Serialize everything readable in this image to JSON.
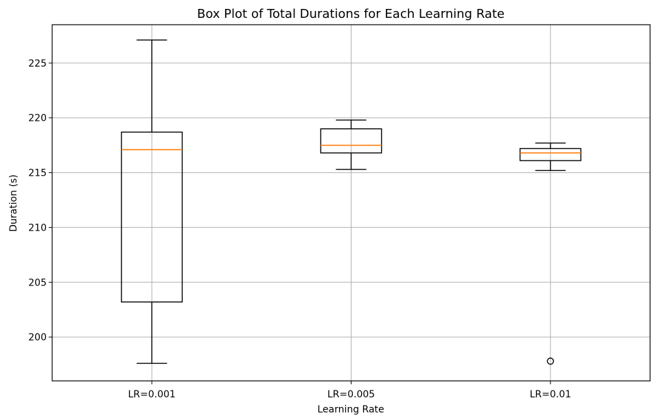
{
  "chart_data": {
    "type": "box",
    "title": "Box Plot of Total Durations for Each Learning Rate",
    "xlabel": "Learning Rate",
    "ylabel": "Duration (s)",
    "ylim": [
      196,
      228.5
    ],
    "yticks": [
      200,
      205,
      210,
      215,
      220,
      225
    ],
    "grid": true,
    "categories": [
      "LR=0.001",
      "LR=0.005",
      "LR=0.01"
    ],
    "boxes": [
      {
        "whisker_low": 197.6,
        "q1": 203.2,
        "median": 217.1,
        "q3": 218.7,
        "whisker_high": 227.1,
        "outliers": []
      },
      {
        "whisker_low": 215.3,
        "q1": 216.8,
        "median": 217.5,
        "q3": 219.0,
        "whisker_high": 219.8,
        "outliers": []
      },
      {
        "whisker_low": 215.2,
        "q1": 216.1,
        "median": 216.8,
        "q3": 217.2,
        "whisker_high": 217.7,
        "outliers": [
          197.8
        ]
      }
    ],
    "colors": {
      "box": "#000000",
      "median": "#ff7f0e",
      "grid": "#b0b0b0"
    }
  }
}
